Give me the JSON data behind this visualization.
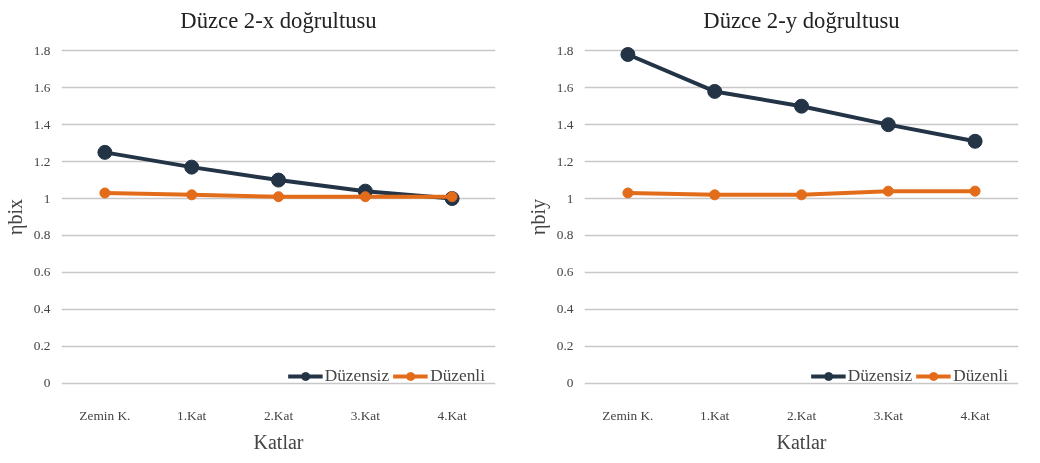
{
  "chart_data": [
    {
      "type": "line",
      "title": "Düzce 2-x doğrultusu",
      "xlabel": "Katlar",
      "ylabel": "ηbix",
      "categories": [
        "Zemin K.",
        "1.Kat",
        "2.Kat",
        "3.Kat",
        "4.Kat"
      ],
      "series": [
        {
          "name": "Düzensiz",
          "color": "#243447",
          "values": [
            1.25,
            1.17,
            1.1,
            1.04,
            1.0
          ]
        },
        {
          "name": "Düzenli",
          "color": "#e36c1a",
          "values": [
            1.03,
            1.02,
            1.01,
            1.01,
            1.01
          ]
        }
      ],
      "ylim": [
        0,
        1.8
      ],
      "yticks": [
        0,
        0.2,
        0.4,
        0.6,
        0.8,
        1,
        1.2,
        1.4,
        1.6,
        1.8
      ],
      "grid": "y",
      "legend": "bottom right",
      "marker": "circle",
      "line_style": "solid"
    },
    {
      "type": "line",
      "title": "Düzce 2-y doğrultusu",
      "xlabel": "Katlar",
      "ylabel": "ηbiy",
      "categories": [
        "Zemin K.",
        "1.Kat",
        "2.Kat",
        "3.Kat",
        "4.Kat"
      ],
      "series": [
        {
          "name": "Düzensiz",
          "color": "#243447",
          "values": [
            1.78,
            1.58,
            1.5,
            1.4,
            1.31
          ]
        },
        {
          "name": "Düzenli",
          "color": "#e36c1a",
          "values": [
            1.03,
            1.02,
            1.02,
            1.04,
            1.04
          ]
        }
      ],
      "ylim": [
        0,
        1.8
      ],
      "yticks": [
        0,
        0.2,
        0.4,
        0.6,
        0.8,
        1,
        1.2,
        1.4,
        1.6,
        1.8
      ],
      "grid": "y",
      "legend": "bottom right",
      "marker": "circle",
      "line_style": "solid"
    }
  ]
}
